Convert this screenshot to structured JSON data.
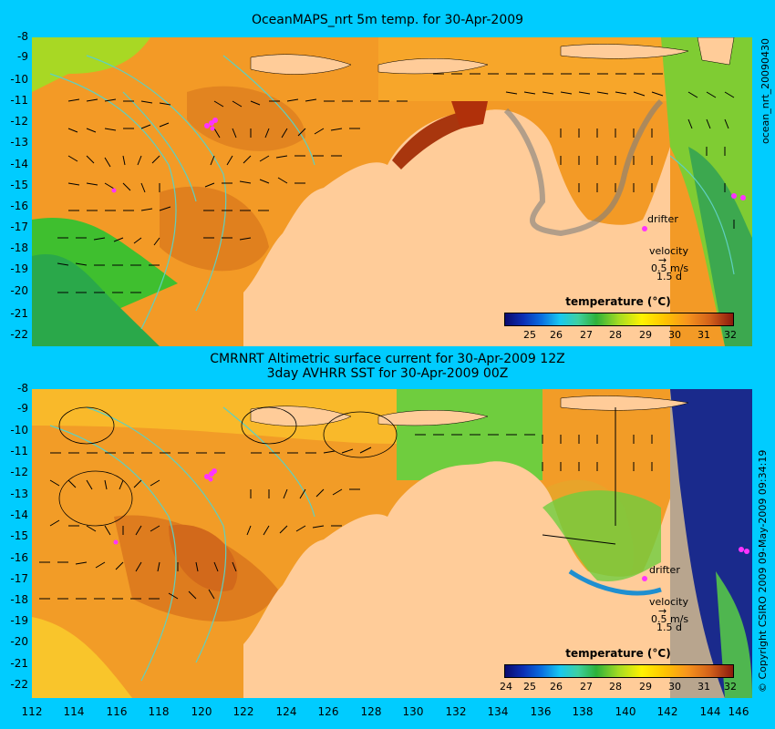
{
  "top_panel": {
    "title": "OceanMAPS_nrt 5m temp. for 30-Apr-2009",
    "side_label": "ocean_nrt_20090430",
    "legend_title": "temperature (°C)",
    "legend_ticks": [
      "25",
      "26",
      "27",
      "28",
      "29",
      "30",
      "31",
      "32"
    ],
    "drifter_label": "drifter",
    "velocity_label": "velocity",
    "velocity_scale": "0.5 m/s",
    "velocity_time": "1.5 d"
  },
  "bottom_panel": {
    "title_line1": "CMRNRT Altimetric surface current for 30-Apr-2009 12Z",
    "title_line2": "3day AVHRR SST for 30-Apr-2009 00Z",
    "side_label": "© Copyright CSIRO 2009   09-May-2009 09:34:19",
    "legend_title": "temperature (°C)",
    "legend_ticks": [
      "24",
      "25",
      "26",
      "27",
      "28",
      "29",
      "30",
      "31",
      "32"
    ],
    "drifter_label": "drifter",
    "velocity_label": "velocity",
    "velocity_scale": "0.5 m/s",
    "velocity_time": "1.5 d"
  },
  "latitude_labels": [
    "-8",
    "-9",
    "-10",
    "-11",
    "-12",
    "-13",
    "-14",
    "-15",
    "-16",
    "-17",
    "-18",
    "-19",
    "-20",
    "-21",
    "-22"
  ],
  "longitude_labels": [
    "112",
    "114",
    "116",
    "118",
    "120",
    "122",
    "124",
    "126",
    "128",
    "130",
    "132",
    "134",
    "136",
    "138",
    "140",
    "142",
    "144",
    "146"
  ],
  "colors": {
    "background": "#00ccff",
    "land": "#ffcc99",
    "drifter": "#ff33ff"
  }
}
